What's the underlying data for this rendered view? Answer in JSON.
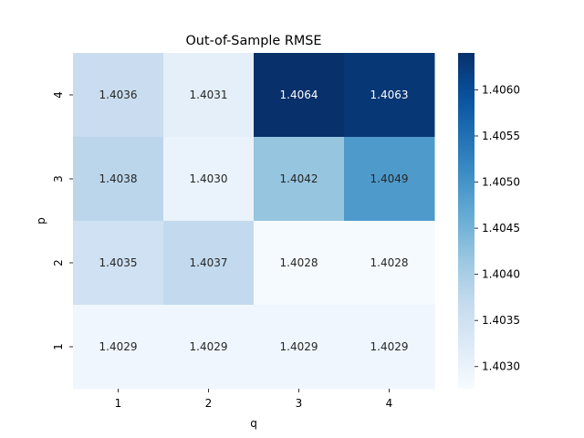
{
  "chart_data": {
    "type": "heatmap",
    "title": "Out-of-Sample RMSE",
    "xlabel": "q",
    "ylabel": "p",
    "x_categories": [
      "1",
      "2",
      "3",
      "4"
    ],
    "y_categories": [
      "4",
      "3",
      "2",
      "1"
    ],
    "values": [
      [
        1.4036,
        1.4031,
        1.4064,
        1.4063
      ],
      [
        1.4038,
        1.403,
        1.4042,
        1.4049
      ],
      [
        1.4035,
        1.4037,
        1.4028,
        1.4028
      ],
      [
        1.4029,
        1.4029,
        1.4029,
        1.4029
      ]
    ],
    "value_format": "0.0000",
    "colormap": "Blues",
    "color_range": [
      1.40276,
      1.4064
    ],
    "colorbar_ticks": [
      "1.4030",
      "1.4035",
      "1.4040",
      "1.4045",
      "1.4050",
      "1.4055",
      "1.4060"
    ],
    "colorbar_tick_values": [
      1.403,
      1.4035,
      1.404,
      1.4045,
      1.405,
      1.4055,
      1.406
    ],
    "grid": false,
    "colorbar_position": "right"
  }
}
